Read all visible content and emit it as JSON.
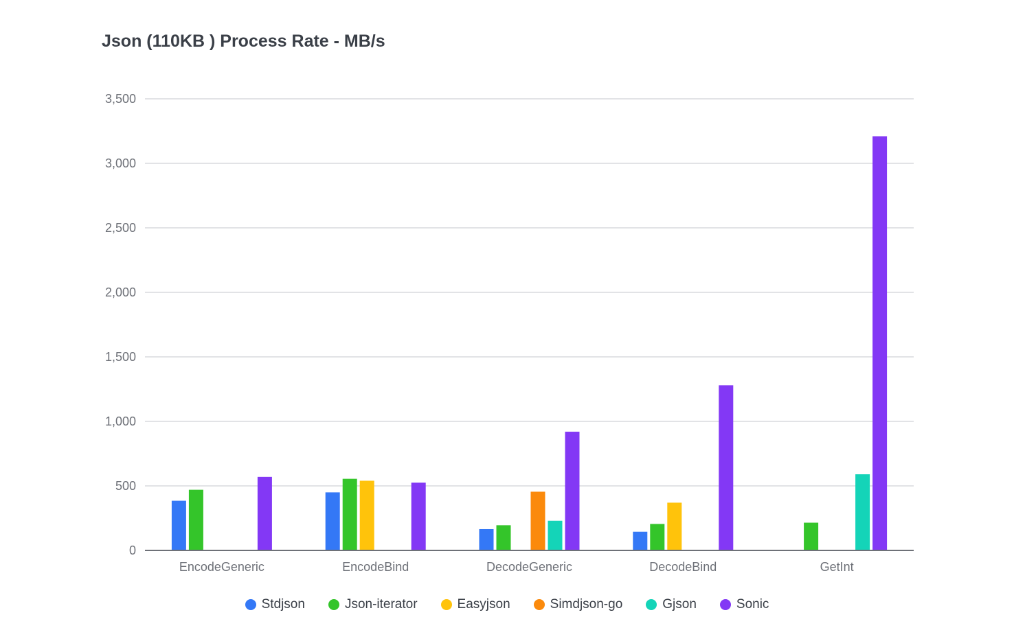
{
  "chart_data": {
    "type": "bar",
    "title": "Json (110KB ) Process Rate - MB/s",
    "xlabel": "",
    "ylabel": "",
    "ylim": [
      0,
      3500
    ],
    "yticks": [
      0,
      500,
      1000,
      1500,
      2000,
      2500,
      3000,
      3500
    ],
    "ytick_labels": [
      "0",
      "500",
      "1,000",
      "1,500",
      "2,000",
      "2,500",
      "3,000",
      "3,500"
    ],
    "grid": true,
    "legend_position": "bottom",
    "categories": [
      "EncodeGeneric",
      "EncodeBind",
      "DecodeGeneric",
      "DecodeBind",
      "GetInt"
    ],
    "series": [
      {
        "name": "Stdjson",
        "color": "#3478f6",
        "values": [
          385,
          450,
          165,
          145,
          null
        ]
      },
      {
        "name": "Json-iterator",
        "color": "#34c52a",
        "values": [
          470,
          555,
          195,
          205,
          215
        ]
      },
      {
        "name": "Easyjson",
        "color": "#ffc30b",
        "values": [
          null,
          540,
          null,
          370,
          null
        ]
      },
      {
        "name": "Simdjson-go",
        "color": "#fb8a0c",
        "values": [
          null,
          null,
          455,
          null,
          null
        ]
      },
      {
        "name": "Gjson",
        "color": "#14d4b8",
        "values": [
          null,
          null,
          230,
          null,
          590
        ]
      },
      {
        "name": "Sonic",
        "color": "#8338f5",
        "values": [
          570,
          525,
          920,
          1280,
          3210
        ]
      }
    ]
  }
}
